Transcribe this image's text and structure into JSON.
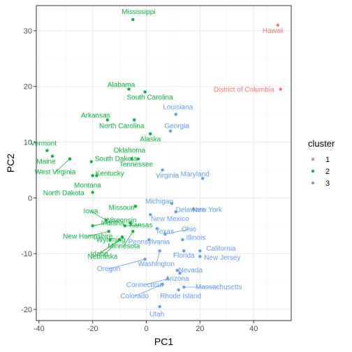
{
  "chart_data": {
    "type": "scatter",
    "xlabel": "PC1",
    "ylabel": "PC2",
    "xlim": [
      -41,
      54
    ],
    "ylim": [
      -22,
      34.5
    ],
    "x_ticks": [
      -40,
      -20,
      0,
      20,
      40
    ],
    "y_ticks": [
      -20,
      -10,
      0,
      10,
      20,
      30
    ],
    "grid": true,
    "legend": {
      "title": "cluster",
      "position": "right",
      "entries": [
        {
          "label": "1",
          "color": "#f8766d"
        },
        {
          "label": "2",
          "color": "#00ba38"
        },
        {
          "label": "3",
          "color": "#619cff"
        }
      ]
    },
    "points": [
      {
        "label": "Hawaii",
        "x": 49,
        "y": 31,
        "cluster": "1"
      },
      {
        "label": "District of Columbia",
        "x": 50,
        "y": 19.5,
        "cluster": "1"
      },
      {
        "label": "Mississippi",
        "x": -5,
        "y": 32,
        "cluster": "2"
      },
      {
        "label": "Alabama",
        "x": -6.5,
        "y": 19.5,
        "cluster": "2"
      },
      {
        "label": "South Carolina",
        "x": -0.5,
        "y": 19,
        "cluster": "2"
      },
      {
        "label": "Arkansas",
        "x": -14.5,
        "y": 14,
        "cluster": "2"
      },
      {
        "label": "North Carolina",
        "x": -4.5,
        "y": 14,
        "cluster": "2"
      },
      {
        "label": "Alaska",
        "x": 1.5,
        "y": 11.5,
        "cluster": "2"
      },
      {
        "label": "Vermont",
        "x": -37,
        "y": 8.5,
        "cluster": "2"
      },
      {
        "label": "Maine",
        "x": -35,
        "y": 7.5,
        "cluster": "2"
      },
      {
        "label": "West Virginia",
        "x": -28.5,
        "y": 7,
        "cluster": "2"
      },
      {
        "label": "South Dakota",
        "x": -20.5,
        "y": 6.5,
        "cluster": "2"
      },
      {
        "label": "Oklahoma",
        "x": -5.5,
        "y": 7,
        "cluster": "2"
      },
      {
        "label": "Tennessee",
        "x": -3,
        "y": 7,
        "cluster": "2"
      },
      {
        "label": "Kentucky",
        "x": -20,
        "y": 4,
        "cluster": "2"
      },
      {
        "label": "Montana",
        "x": -18.5,
        "y": 4,
        "cluster": "2"
      },
      {
        "label": "North Dakota",
        "x": -20,
        "y": 1,
        "cluster": "2"
      },
      {
        "label": "Missouri",
        "x": -4,
        "y": -1.5,
        "cluster": "2"
      },
      {
        "label": "Iowa",
        "x": -15,
        "y": -4,
        "cluster": "2"
      },
      {
        "label": "Indiana",
        "x": -6,
        "y": -4.5,
        "cluster": "2"
      },
      {
        "label": "Wisconsin",
        "x": -20,
        "y": -5,
        "cluster": "2"
      },
      {
        "label": "Kansas",
        "x": -8,
        "y": -5,
        "cluster": "2"
      },
      {
        "label": "New Hampshire",
        "x": -14,
        "y": -6,
        "cluster": "2"
      },
      {
        "label": "Wyoming",
        "x": -13.5,
        "y": -7.5,
        "cluster": "2"
      },
      {
        "label": "Minnesota",
        "x": -5,
        "y": -6,
        "cluster": "2"
      },
      {
        "label": "Idaho",
        "x": -10,
        "y": -7.5,
        "cluster": "2"
      },
      {
        "label": "Nebraska",
        "x": -9,
        "y": -7,
        "cluster": "2"
      },
      {
        "label": "Louisiana",
        "x": 11,
        "y": 15,
        "cluster": "3"
      },
      {
        "label": "Georgia",
        "x": 9,
        "y": 12,
        "cluster": "3"
      },
      {
        "label": "Virginia",
        "x": 6,
        "y": 5,
        "cluster": "3"
      },
      {
        "label": "Maryland",
        "x": 21,
        "y": 3.5,
        "cluster": "3"
      },
      {
        "label": "Michigan",
        "x": 9.5,
        "y": -1,
        "cluster": "3"
      },
      {
        "label": "Delaware",
        "x": 11,
        "y": -2.5,
        "cluster": "3"
      },
      {
        "label": "New York",
        "x": 17.5,
        "y": -2,
        "cluster": "3"
      },
      {
        "label": "New Mexico",
        "x": 1.5,
        "y": -3,
        "cluster": "3"
      },
      {
        "label": "Ohio",
        "x": 7,
        "y": -6.5,
        "cluster": "3"
      },
      {
        "label": "Texas",
        "x": 4,
        "y": -5.5,
        "cluster": "3"
      },
      {
        "label": "Illinois",
        "x": 13.5,
        "y": -7.5,
        "cluster": "3"
      },
      {
        "label": "Pennsylvania",
        "x": 1,
        "y": -7.5,
        "cluster": "3"
      },
      {
        "label": "Florida",
        "x": 14,
        "y": -9.5,
        "cluster": "3"
      },
      {
        "label": "California",
        "x": 20,
        "y": -9.5,
        "cluster": "3"
      },
      {
        "label": "New Jersey",
        "x": 20,
        "y": -10.5,
        "cluster": "3"
      },
      {
        "label": "Washington",
        "x": 5,
        "y": -9.5,
        "cluster": "3"
      },
      {
        "label": "Oregon",
        "x": -0.5,
        "y": -11,
        "cluster": "3"
      },
      {
        "label": "Nevada",
        "x": 11.5,
        "y": -13,
        "cluster": "3"
      },
      {
        "label": "Connecticut",
        "x": 8,
        "y": -14.5,
        "cluster": "3"
      },
      {
        "label": "Arizona",
        "x": 12.5,
        "y": -13.5,
        "cluster": "3"
      },
      {
        "label": "Colorado",
        "x": 6,
        "y": -15.5,
        "cluster": "3"
      },
      {
        "label": "Massachusetts",
        "x": 14,
        "y": -16,
        "cluster": "3"
      },
      {
        "label": "Rhode Island",
        "x": 12,
        "y": -16.5,
        "cluster": "3"
      },
      {
        "label": "Utah",
        "x": 5,
        "y": -19.5,
        "cluster": "3"
      }
    ]
  }
}
